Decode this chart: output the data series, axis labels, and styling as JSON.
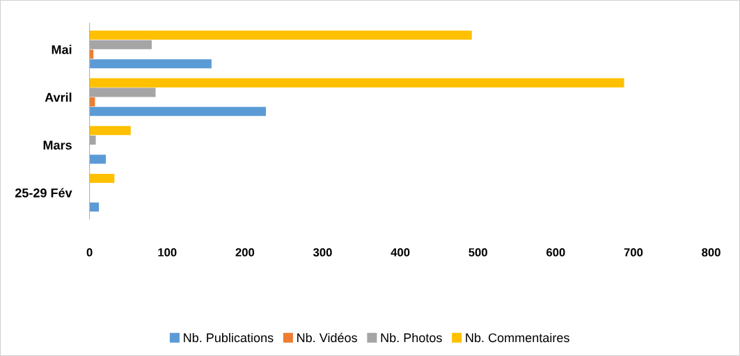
{
  "chart_data": {
    "type": "bar",
    "orientation": "horizontal",
    "categories": [
      "Mai",
      "Avril",
      "Mars",
      "25-29 Fév"
    ],
    "series": [
      {
        "name": "Nb. Publications",
        "color": "#5b9bd5",
        "values": [
          157,
          227,
          21,
          12
        ]
      },
      {
        "name": "Nb. Vidéos",
        "color": "#ed7d31",
        "values": [
          5,
          7,
          0,
          0
        ]
      },
      {
        "name": "Nb. Photos",
        "color": "#a5a5a5",
        "values": [
          80,
          85,
          8,
          0
        ]
      },
      {
        "name": "Nb. Commentaires",
        "color": "#ffc000",
        "values": [
          492,
          688,
          53,
          32
        ]
      }
    ],
    "xlim": [
      0,
      800
    ],
    "xticks": [
      0,
      100,
      200,
      300,
      400,
      500,
      600,
      700,
      800
    ],
    "grid": false,
    "legend": "bottom"
  }
}
